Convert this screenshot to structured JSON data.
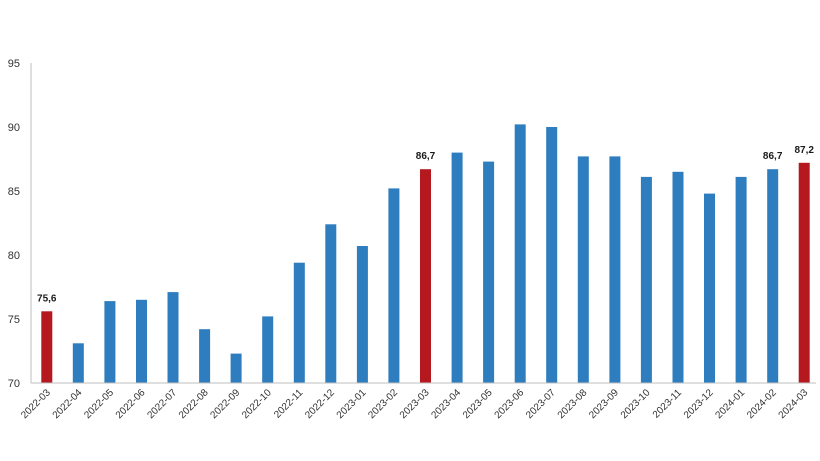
{
  "chart_data": {
    "type": "bar",
    "categories": [
      "2022-03",
      "2022-04",
      "2022-05",
      "2022-06",
      "2022-07",
      "2022-08",
      "2022-09",
      "2022-10",
      "2022-11",
      "2022-12",
      "2023-01",
      "2023-02",
      "2023-03",
      "2023-04",
      "2023-05",
      "2023-06",
      "2023-07",
      "2023-08",
      "2023-09",
      "2023-10",
      "2023-11",
      "2023-12",
      "2024-01",
      "2024-02",
      "2024-03"
    ],
    "values": [
      75.6,
      73.1,
      76.4,
      76.5,
      77.1,
      74.2,
      72.3,
      75.2,
      79.4,
      82.4,
      80.7,
      85.2,
      86.7,
      88.0,
      87.3,
      90.2,
      90.0,
      87.7,
      87.7,
      86.1,
      86.5,
      84.8,
      86.1,
      86.7,
      87.2
    ],
    "highlight_indices": [
      0,
      12,
      24
    ],
    "data_labels": [
      {
        "index": 0,
        "text": "75,6"
      },
      {
        "index": 12,
        "text": "86,7"
      },
      {
        "index": 23,
        "text": "86,7"
      },
      {
        "index": 24,
        "text": "87,2"
      }
    ],
    "yticks": [
      "70",
      "75",
      "80",
      "85",
      "90",
      "95"
    ],
    "ylim": [
      70,
      95
    ],
    "colors": {
      "bar": "#2e7dbf",
      "highlight": "#b5191f",
      "axis": "#bfbfbf"
    },
    "grid": false,
    "title": "",
    "xlabel": "",
    "ylabel": ""
  }
}
